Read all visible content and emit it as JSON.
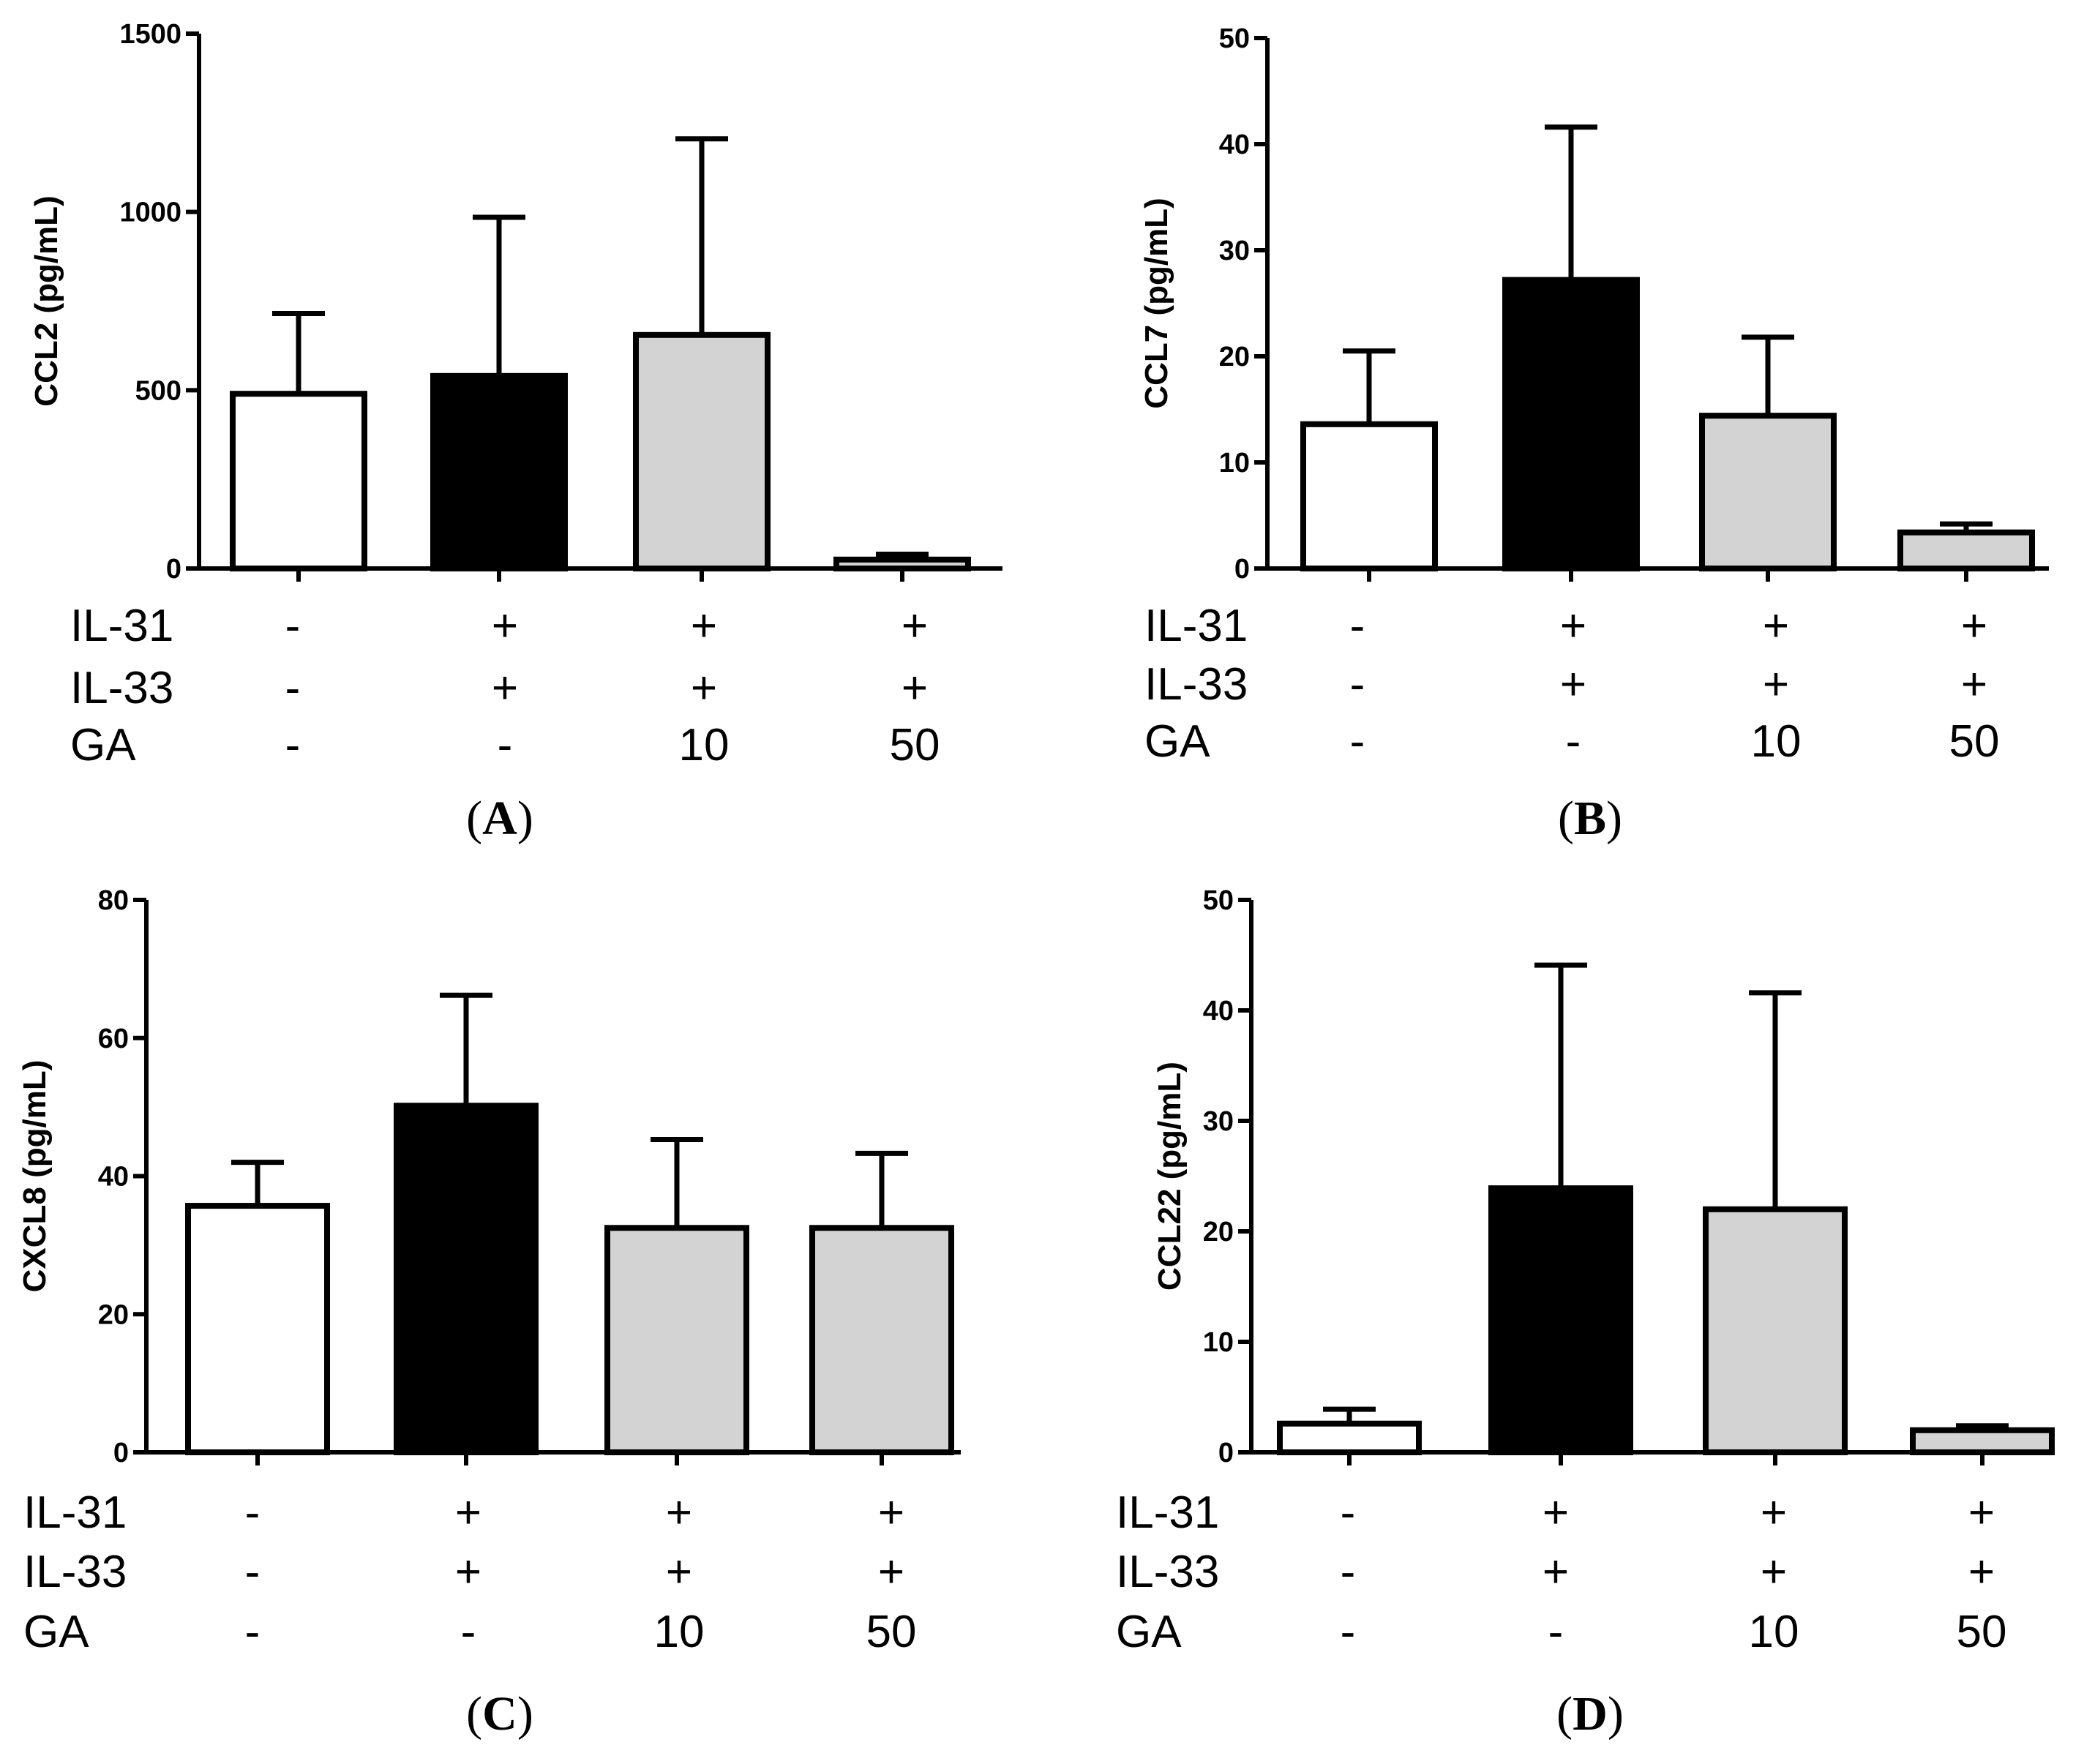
{
  "figure": {
    "row_labels": [
      "IL-31",
      "IL-33",
      "GA"
    ],
    "colors": {
      "axis": "#000000",
      "bar_stroke": "#000000",
      "control": "#ffffff",
      "il31_il33": "#000000",
      "ga": "#d3d3d3"
    }
  },
  "chart_data": [
    {
      "panel": "A",
      "type": "bar",
      "ylabel": "CCL2  (pg/mL)",
      "ylim": [
        0,
        1500
      ],
      "yticks": [
        0,
        500,
        1000,
        1500
      ],
      "categories": [
        "IL-31 - / IL-33 - / GA -",
        "IL-31 + / IL-33 + / GA -",
        "IL-31 + / IL-33 + / GA 10",
        "IL-31 + / IL-33 + / GA 50"
      ],
      "conditions": {
        "IL-31": [
          "-",
          "+",
          "+",
          "+"
        ],
        "IL-33": [
          "-",
          "+",
          "+",
          "+"
        ],
        "GA": [
          "-",
          "-",
          "10",
          "50"
        ]
      },
      "values": [
        490,
        540,
        655,
        25
      ],
      "error_upper": [
        715,
        985,
        1205,
        40
      ],
      "bar_colors": [
        "control",
        "il31_il33",
        "ga",
        "ga"
      ],
      "grid": false
    },
    {
      "panel": "B",
      "type": "bar",
      "ylabel": "CCL7 (pg/mL)",
      "ylim": [
        0,
        50
      ],
      "yticks": [
        0,
        10,
        20,
        30,
        40,
        50
      ],
      "categories": [
        "IL-31 - / IL-33 - / GA -",
        "IL-31 + / IL-33 + / GA -",
        "IL-31 + / IL-33 + / GA 10",
        "IL-31 + / IL-33 + / GA 50"
      ],
      "conditions": {
        "IL-31": [
          "-",
          "+",
          "+",
          "+"
        ],
        "IL-33": [
          "-",
          "+",
          "+",
          "+"
        ],
        "GA": [
          "-",
          "-",
          "10",
          "50"
        ]
      },
      "values": [
        13.6,
        27.2,
        14.4,
        3.4
      ],
      "error_upper": [
        20.5,
        41.6,
        21.8,
        4.2
      ],
      "bar_colors": [
        "control",
        "il31_il33",
        "ga",
        "ga"
      ],
      "grid": false
    },
    {
      "panel": "C",
      "type": "bar",
      "ylabel": "CXCL8 (pg/mL)",
      "ylim": [
        0,
        80
      ],
      "yticks": [
        0,
        20,
        40,
        60,
        80
      ],
      "categories": [
        "IL-31 - / IL-33 - / GA -",
        "IL-31 + / IL-33 + / GA -",
        "IL-31 + / IL-33 + / GA 10",
        "IL-31 + / IL-33 + / GA 50"
      ],
      "conditions": {
        "IL-31": [
          "-",
          "+",
          "+",
          "+"
        ],
        "IL-33": [
          "-",
          "+",
          "+",
          "+"
        ],
        "GA": [
          "-",
          "-",
          "10",
          "50"
        ]
      },
      "values": [
        35.7,
        50.2,
        32.5,
        32.5
      ],
      "error_upper": [
        42.0,
        66.2,
        45.3,
        43.3
      ],
      "bar_colors": [
        "control",
        "il31_il33",
        "ga",
        "ga"
      ],
      "grid": false
    },
    {
      "panel": "D",
      "type": "bar",
      "ylabel": "CCL22 (pg/mL)",
      "ylim": [
        0,
        50
      ],
      "yticks": [
        0,
        10,
        20,
        30,
        40,
        50
      ],
      "categories": [
        "IL-31 - / IL-33 - / GA -",
        "IL-31 + / IL-33 + / GA -",
        "IL-31 + / IL-33 + / GA 10",
        "IL-31 + / IL-33 + / GA 50"
      ],
      "conditions": {
        "IL-31": [
          "-",
          "+",
          "+",
          "+"
        ],
        "IL-33": [
          "-",
          "+",
          "+",
          "+"
        ],
        "GA": [
          "-",
          "-",
          "10",
          "50"
        ]
      },
      "values": [
        2.6,
        23.9,
        22.0,
        2.0
      ],
      "error_upper": [
        3.9,
        44.1,
        41.6,
        2.4
      ],
      "bar_colors": [
        "control",
        "il31_il33",
        "ga",
        "ga"
      ],
      "grid": false
    }
  ]
}
